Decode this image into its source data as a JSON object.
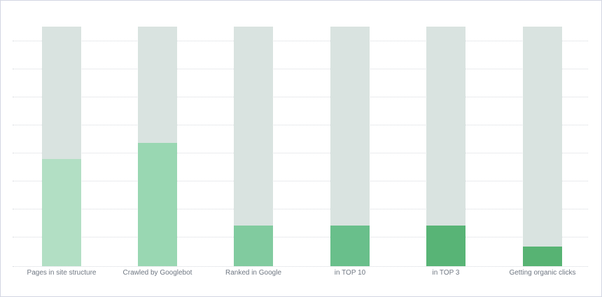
{
  "chart_data": {
    "type": "bar",
    "stacked": true,
    "title": "",
    "xlabel": "",
    "ylabel": "",
    "categories": [
      "Pages in site structure",
      "Crawled by Googlebot",
      "Ranked in Google",
      "in TOP 10",
      "in TOP 3",
      "Getting organic clicks"
    ],
    "values_percent_of_max": [
      44.7,
      51.5,
      17.0,
      17.0,
      17.0,
      8.2
    ],
    "background_values_percent": [
      100,
      100,
      100,
      100,
      100,
      100
    ],
    "ylim": [
      0,
      100
    ],
    "grid": true,
    "gridline_count": 9,
    "legend": null,
    "colors": {
      "background_bar": "#d9e3e0",
      "fills": [
        "#b2dfc4",
        "#99d7b2",
        "#81cb9f",
        "#69bf8b",
        "#58b476",
        "#57b373"
      ],
      "gridline": "#d6d9de",
      "label": "#6f7782",
      "frame_border": "#d3d6e2"
    }
  },
  "labels": {
    "bar0": "Pages in site structure",
    "bar1": "Crawled by Googlebot",
    "bar2": "Ranked in Google",
    "bar3": "in TOP 10",
    "bar4": "in TOP 3",
    "bar5": "Getting organic clicks"
  }
}
